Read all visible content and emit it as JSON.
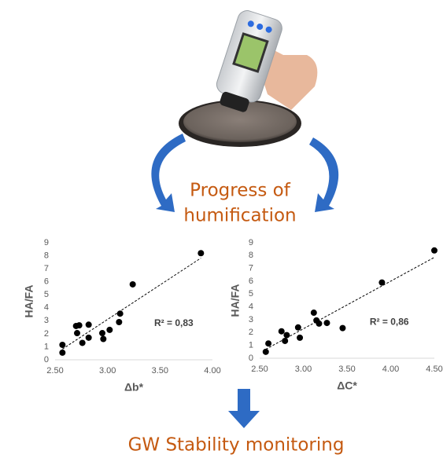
{
  "caption": "Progress of humification",
  "caption_lines": [
    "Progress of",
    "humification"
  ],
  "footer": "GW Stability monitoring",
  "chart_data": [
    {
      "type": "scatter",
      "ylabel": "HA/FA",
      "xlabel": "Δb*",
      "annotation": "R² = 0,83",
      "color": "#000000",
      "x": [
        2.57,
        2.57,
        2.7,
        2.73,
        2.71,
        2.76,
        2.82,
        2.82,
        2.95,
        2.96,
        3.02,
        3.11,
        3.12,
        3.24,
        3.89
      ],
      "values": [
        0.55,
        1.15,
        2.6,
        2.65,
        2.05,
        1.3,
        2.7,
        1.7,
        2.05,
        1.6,
        2.3,
        2.9,
        3.55,
        5.8,
        8.2
      ],
      "xlim": [
        2.5,
        4.0
      ],
      "xticks": [
        {
          "value": 2.5,
          "label": "2.50"
        },
        {
          "value": 3.0,
          "label": "3.00"
        },
        {
          "value": 3.5,
          "label": "3.50"
        },
        {
          "value": 4.0,
          "label": "4.00"
        }
      ],
      "ylim": [
        0,
        9
      ],
      "yticks": [
        0,
        1,
        2,
        3,
        4,
        5,
        6,
        7,
        8,
        9
      ]
    },
    {
      "type": "scatter",
      "ylabel": "HA/FA",
      "xlabel": "ΔC*",
      "annotation": "R² = 0,86",
      "color": "#000000",
      "x": [
        2.57,
        2.6,
        2.75,
        2.79,
        2.81,
        2.94,
        2.96,
        3.12,
        3.15,
        3.18,
        3.27,
        3.45,
        3.9,
        4.5
      ],
      "values": [
        0.5,
        1.15,
        2.1,
        1.35,
        1.8,
        2.4,
        1.6,
        3.55,
        2.95,
        2.7,
        2.75,
        2.35,
        5.9,
        8.4
      ],
      "xlim": [
        2.5,
        4.5
      ],
      "xticks": [
        {
          "value": 2.5,
          "label": "2.50"
        },
        {
          "value": 3.0,
          "label": "3.00"
        },
        {
          "value": 3.5,
          "label": "3.50"
        },
        {
          "value": 4.0,
          "label": "4.00"
        },
        {
          "value": 4.5,
          "label": "4.50"
        }
      ],
      "ylim": [
        0,
        9
      ],
      "yticks": [
        0,
        1,
        2,
        3,
        4,
        5,
        6,
        7,
        8,
        9
      ]
    }
  ]
}
